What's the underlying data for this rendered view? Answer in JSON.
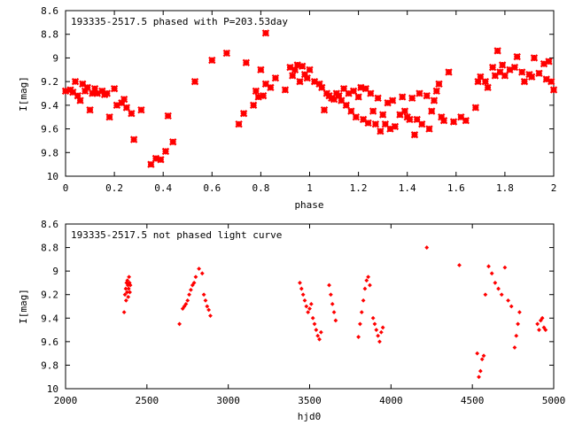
{
  "chart_data": [
    {
      "type": "scatter",
      "title": "193335-2517.5 phased with P=203.53day",
      "xlabel": "phase",
      "ylabel": "I[mag]",
      "xlim": [
        0,
        2
      ],
      "ylim": [
        10,
        8.6
      ],
      "y_inverted": true,
      "xticks": [
        0,
        0.2,
        0.4,
        0.6,
        0.8,
        1,
        1.2,
        1.4,
        1.6,
        1.8,
        2
      ],
      "xtick_labels": [
        "0",
        "0.2",
        "0.4",
        "0.6",
        "0.8",
        "1",
        "1.2",
        "1.4",
        "1.6",
        "1.8",
        "2"
      ],
      "yticks": [
        8.6,
        8.8,
        9,
        9.2,
        9.4,
        9.6,
        9.8,
        10
      ],
      "ytick_labels": [
        "8.6",
        "8.8",
        "9",
        "9.2",
        "9.4",
        "9.6",
        "9.8",
        "10"
      ],
      "grid": false,
      "marker_color": "#ff0000",
      "points": [
        [
          0.0,
          9.28
        ],
        [
          0.02,
          9.27
        ],
        [
          0.03,
          9.29
        ],
        [
          0.04,
          9.2
        ],
        [
          0.05,
          9.32
        ],
        [
          0.06,
          9.36
        ],
        [
          0.07,
          9.22
        ],
        [
          0.08,
          9.28
        ],
        [
          0.09,
          9.25
        ],
        [
          0.1,
          9.44
        ],
        [
          0.11,
          9.3
        ],
        [
          0.12,
          9.26
        ],
        [
          0.13,
          9.3
        ],
        [
          0.15,
          9.28
        ],
        [
          0.16,
          9.31
        ],
        [
          0.17,
          9.3
        ],
        [
          0.18,
          9.5
        ],
        [
          0.2,
          9.26
        ],
        [
          0.21,
          9.4
        ],
        [
          0.23,
          9.38
        ],
        [
          0.24,
          9.35
        ],
        [
          0.25,
          9.42
        ],
        [
          0.27,
          9.47
        ],
        [
          0.28,
          9.69
        ],
        [
          0.31,
          9.44
        ],
        [
          0.35,
          9.9
        ],
        [
          0.37,
          9.85
        ],
        [
          0.39,
          9.86
        ],
        [
          0.41,
          9.79
        ],
        [
          0.42,
          9.49
        ],
        [
          0.44,
          9.71
        ],
        [
          0.53,
          9.2
        ],
        [
          0.6,
          9.02
        ],
        [
          0.66,
          8.96
        ],
        [
          0.71,
          9.56
        ],
        [
          0.73,
          9.47
        ],
        [
          0.74,
          9.04
        ],
        [
          0.77,
          9.4
        ],
        [
          0.78,
          9.28
        ],
        [
          0.79,
          9.33
        ],
        [
          0.8,
          9.1
        ],
        [
          0.81,
          9.32
        ],
        [
          0.82,
          9.22
        ],
        [
          0.82,
          8.79
        ],
        [
          0.84,
          9.25
        ],
        [
          0.86,
          9.17
        ],
        [
          0.9,
          9.27
        ],
        [
          0.92,
          9.08
        ],
        [
          0.93,
          9.15
        ],
        [
          0.94,
          9.1
        ],
        [
          0.95,
          9.06
        ],
        [
          0.96,
          9.2
        ],
        [
          0.97,
          9.07
        ],
        [
          0.98,
          9.14
        ],
        [
          0.99,
          9.17
        ],
        [
          1.0,
          9.1
        ],
        [
          1.02,
          9.2
        ],
        [
          1.04,
          9.22
        ],
        [
          1.05,
          9.25
        ],
        [
          1.06,
          9.44
        ],
        [
          1.07,
          9.3
        ],
        [
          1.08,
          9.32
        ],
        [
          1.09,
          9.34
        ],
        [
          1.1,
          9.35
        ],
        [
          1.11,
          9.3
        ],
        [
          1.12,
          9.32
        ],
        [
          1.13,
          9.36
        ],
        [
          1.14,
          9.26
        ],
        [
          1.15,
          9.4
        ],
        [
          1.16,
          9.3
        ],
        [
          1.17,
          9.45
        ],
        [
          1.18,
          9.28
        ],
        [
          1.19,
          9.5
        ],
        [
          1.2,
          9.33
        ],
        [
          1.21,
          9.25
        ],
        [
          1.22,
          9.52
        ],
        [
          1.23,
          9.26
        ],
        [
          1.24,
          9.55
        ],
        [
          1.25,
          9.3
        ],
        [
          1.26,
          9.45
        ],
        [
          1.27,
          9.56
        ],
        [
          1.28,
          9.34
        ],
        [
          1.29,
          9.62
        ],
        [
          1.3,
          9.48
        ],
        [
          1.31,
          9.56
        ],
        [
          1.32,
          9.38
        ],
        [
          1.33,
          9.6
        ],
        [
          1.34,
          9.36
        ],
        [
          1.35,
          9.58
        ],
        [
          1.37,
          9.48
        ],
        [
          1.38,
          9.33
        ],
        [
          1.39,
          9.45
        ],
        [
          1.4,
          9.5
        ],
        [
          1.41,
          9.52
        ],
        [
          1.42,
          9.34
        ],
        [
          1.43,
          9.65
        ],
        [
          1.44,
          9.52
        ],
        [
          1.45,
          9.3
        ],
        [
          1.46,
          9.56
        ],
        [
          1.48,
          9.32
        ],
        [
          1.49,
          9.6
        ],
        [
          1.5,
          9.45
        ],
        [
          1.51,
          9.36
        ],
        [
          1.52,
          9.28
        ],
        [
          1.53,
          9.22
        ],
        [
          1.54,
          9.5
        ],
        [
          1.55,
          9.53
        ],
        [
          1.57,
          9.12
        ],
        [
          1.59,
          9.54
        ],
        [
          1.62,
          9.5
        ],
        [
          1.64,
          9.53
        ],
        [
          1.68,
          9.42
        ],
        [
          1.69,
          9.2
        ],
        [
          1.7,
          9.16
        ],
        [
          1.72,
          9.2
        ],
        [
          1.73,
          9.25
        ],
        [
          1.75,
          9.08
        ],
        [
          1.76,
          9.15
        ],
        [
          1.77,
          8.94
        ],
        [
          1.78,
          9.12
        ],
        [
          1.79,
          9.06
        ],
        [
          1.8,
          9.15
        ],
        [
          1.82,
          9.1
        ],
        [
          1.84,
          9.08
        ],
        [
          1.85,
          8.99
        ],
        [
          1.87,
          9.12
        ],
        [
          1.88,
          9.2
        ],
        [
          1.9,
          9.14
        ],
        [
          1.91,
          9.16
        ],
        [
          1.92,
          9.0
        ],
        [
          1.94,
          9.13
        ],
        [
          1.96,
          9.05
        ],
        [
          1.97,
          9.18
        ],
        [
          1.98,
          9.03
        ],
        [
          1.99,
          9.2
        ],
        [
          2.0,
          9.27
        ]
      ]
    },
    {
      "type": "scatter",
      "title": "193335-2517.5 not phased light curve",
      "xlabel": "hjd0",
      "ylabel": "I[mag]",
      "xlim": [
        2000,
        5000
      ],
      "ylim": [
        10,
        8.6
      ],
      "y_inverted": true,
      "xticks": [
        2000,
        2500,
        3000,
        3500,
        4000,
        4500,
        5000
      ],
      "xtick_labels": [
        "2000",
        "2500",
        "3000",
        "3500",
        "4000",
        "4500",
        "5000"
      ],
      "yticks": [
        8.6,
        8.8,
        9,
        9.2,
        9.4,
        9.6,
        9.8,
        10
      ],
      "ytick_labels": [
        "8.6",
        "8.8",
        "9",
        "9.2",
        "9.4",
        "9.6",
        "9.8",
        "10"
      ],
      "grid": false,
      "marker_color": "#ff0000",
      "points": [
        [
          2360,
          9.35
        ],
        [
          2365,
          9.2
        ],
        [
          2370,
          9.15
        ],
        [
          2372,
          9.25
        ],
        [
          2375,
          9.1
        ],
        [
          2378,
          9.18
        ],
        [
          2380,
          9.08
        ],
        [
          2383,
          9.12
        ],
        [
          2385,
          9.22
        ],
        [
          2388,
          9.15
        ],
        [
          2390,
          9.05
        ],
        [
          2393,
          9.1
        ],
        [
          2395,
          9.18
        ],
        [
          2398,
          9.12
        ],
        [
          2700,
          9.45
        ],
        [
          2720,
          9.32
        ],
        [
          2730,
          9.3
        ],
        [
          2740,
          9.28
        ],
        [
          2750,
          9.25
        ],
        [
          2760,
          9.2
        ],
        [
          2770,
          9.16
        ],
        [
          2780,
          9.12
        ],
        [
          2790,
          9.1
        ],
        [
          2800,
          9.05
        ],
        [
          2820,
          8.98
        ],
        [
          2840,
          9.02
        ],
        [
          2850,
          9.2
        ],
        [
          2860,
          9.25
        ],
        [
          2870,
          9.3
        ],
        [
          2880,
          9.33
        ],
        [
          2890,
          9.38
        ],
        [
          3440,
          9.1
        ],
        [
          3450,
          9.15
        ],
        [
          3460,
          9.2
        ],
        [
          3470,
          9.25
        ],
        [
          3480,
          9.3
        ],
        [
          3490,
          9.35
        ],
        [
          3500,
          9.32
        ],
        [
          3510,
          9.28
        ],
        [
          3520,
          9.4
        ],
        [
          3530,
          9.45
        ],
        [
          3540,
          9.5
        ],
        [
          3550,
          9.55
        ],
        [
          3560,
          9.58
        ],
        [
          3570,
          9.52
        ],
        [
          3620,
          9.12
        ],
        [
          3630,
          9.2
        ],
        [
          3640,
          9.28
        ],
        [
          3650,
          9.35
        ],
        [
          3660,
          9.42
        ],
        [
          3800,
          9.56
        ],
        [
          3810,
          9.45
        ],
        [
          3820,
          9.35
        ],
        [
          3830,
          9.25
        ],
        [
          3840,
          9.15
        ],
        [
          3850,
          9.08
        ],
        [
          3860,
          9.05
        ],
        [
          3870,
          9.12
        ],
        [
          3890,
          9.4
        ],
        [
          3900,
          9.45
        ],
        [
          3910,
          9.5
        ],
        [
          3920,
          9.55
        ],
        [
          3930,
          9.6
        ],
        [
          3940,
          9.52
        ],
        [
          3950,
          9.48
        ],
        [
          4220,
          8.8
        ],
        [
          4420,
          8.95
        ],
        [
          4530,
          9.7
        ],
        [
          4540,
          9.9
        ],
        [
          4550,
          9.85
        ],
        [
          4560,
          9.75
        ],
        [
          4570,
          9.72
        ],
        [
          4580,
          9.2
        ],
        [
          4600,
          8.96
        ],
        [
          4620,
          9.02
        ],
        [
          4640,
          9.1
        ],
        [
          4660,
          9.15
        ],
        [
          4680,
          9.2
        ],
        [
          4700,
          8.97
        ],
        [
          4720,
          9.25
        ],
        [
          4740,
          9.3
        ],
        [
          4760,
          9.65
        ],
        [
          4770,
          9.55
        ],
        [
          4780,
          9.45
        ],
        [
          4790,
          9.35
        ],
        [
          4900,
          9.45
        ],
        [
          4910,
          9.5
        ],
        [
          4920,
          9.42
        ],
        [
          4930,
          9.4
        ],
        [
          4940,
          9.48
        ],
        [
          4950,
          9.5
        ]
      ]
    }
  ]
}
